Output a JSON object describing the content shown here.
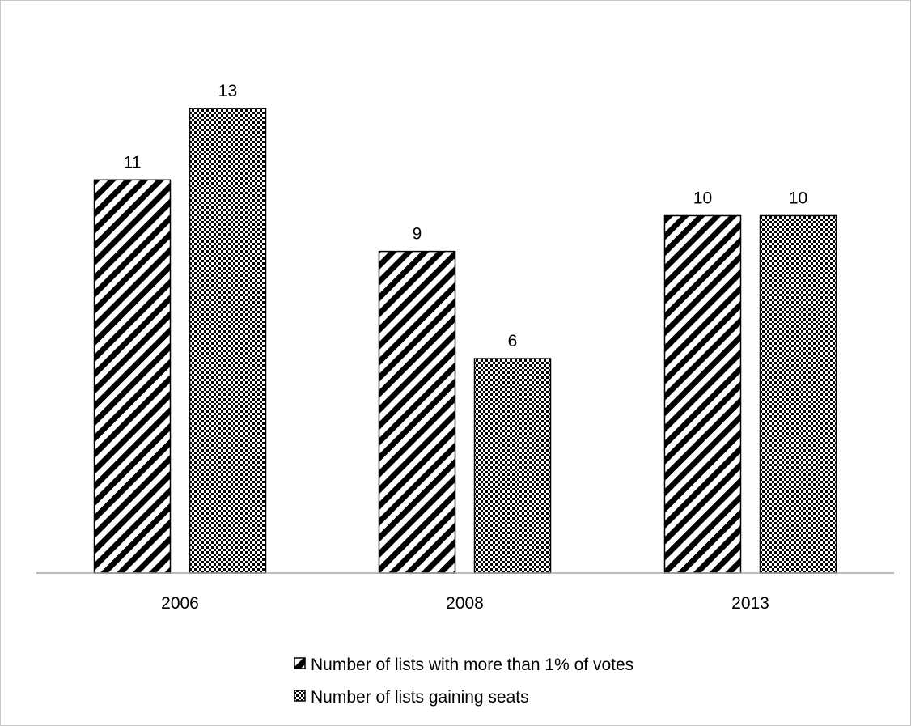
{
  "chart_data": {
    "type": "bar",
    "title": "",
    "xlabel": "",
    "ylabel": "",
    "categories": [
      "2006",
      "2008",
      "2013"
    ],
    "series": [
      {
        "name": "Number of lists with more than 1% of votes",
        "values": [
          11,
          9,
          10
        ],
        "pattern": "diagonal-stripes",
        "color": "#000000"
      },
      {
        "name": "Number of lists gaining seats",
        "values": [
          13,
          6,
          10
        ],
        "pattern": "checkerboard",
        "color": "#000000"
      }
    ],
    "ylim": [
      0,
      13
    ],
    "grid": false,
    "data_labels": true,
    "legend_position": "bottom"
  }
}
